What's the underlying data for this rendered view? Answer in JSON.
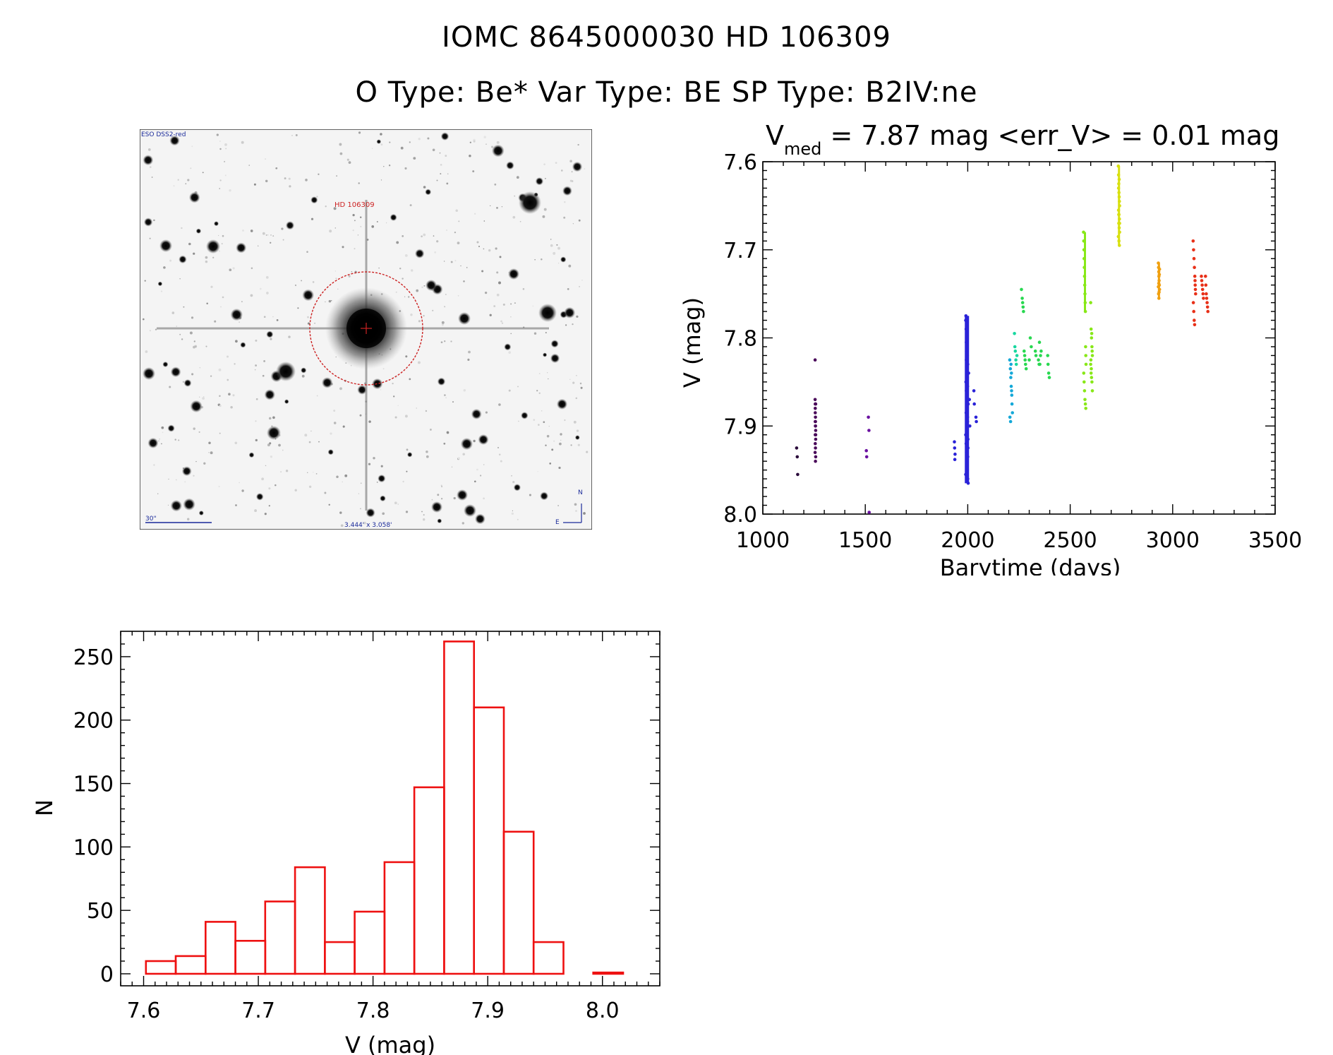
{
  "header": {
    "title": "IOMC 8645000030    HD 106309",
    "subtitle": "O Type: Be*   Var Type: BE   SP Type: B2IV:ne"
  },
  "finder": {
    "survey_label": "ESO DSS2-red",
    "target_label": "HD 106309",
    "scale_label": "30\"",
    "fov_label": "3.444' x 3.058'",
    "north_label": "N",
    "east_label": "E",
    "colors": {
      "circle": "#cc2222",
      "labels": "#1a2a9a",
      "target": "#cc2222"
    }
  },
  "chart_data": [
    {
      "type": "scatter",
      "title_main": "V",
      "title_sub": "med",
      "title_rest": " = 7.87 mag <err_V> = 0.01 mag",
      "xlabel": "Barytime (days)",
      "ylabel": "V (mag)",
      "xlim": [
        1000,
        3500
      ],
      "ylim": [
        7.6,
        8.0
      ],
      "y_inverted": true,
      "xticks": [
        1000,
        1500,
        2000,
        2500,
        3000,
        3500
      ],
      "yticks": [
        7.6,
        7.7,
        7.8,
        7.9,
        8.0
      ],
      "series": [
        {
          "color": "#2a0a3a",
          "x": [
            1165,
            1168,
            1170
          ],
          "y": [
            7.925,
            7.935,
            7.955
          ]
        },
        {
          "color": "#4a0a5a",
          "x": [
            1255,
            1255,
            1256,
            1256,
            1256,
            1257,
            1257,
            1257,
            1258,
            1258,
            1258,
            1256,
            1257,
            1255,
            1258,
            1257,
            1256,
            1258,
            1257,
            1256
          ],
          "y": [
            7.825,
            7.87,
            7.875,
            7.88,
            7.885,
            7.89,
            7.895,
            7.9,
            7.905,
            7.91,
            7.915,
            7.92,
            7.925,
            7.93,
            7.935,
            7.94,
            7.895,
            7.875,
            7.9,
            7.91
          ]
        },
        {
          "color": "#6a10a0",
          "x": [
            1505,
            1507,
            1515,
            1518,
            1519
          ],
          "y": [
            7.928,
            7.935,
            7.89,
            7.905,
            7.998
          ]
        },
        {
          "color": "#2a22d8",
          "x": [
            1935,
            1936,
            1938,
            1937,
            1990,
            1992,
            1994,
            1996,
            1998,
            2000,
            2002,
            1991,
            1993,
            1995,
            1997,
            1999,
            2001,
            1990,
            1992,
            1994,
            1996,
            1998,
            2000,
            2002,
            1991,
            1993,
            1995,
            1997,
            1999,
            2001,
            1990,
            1994,
            1998,
            2002,
            1996,
            2000,
            1992,
            1997,
            1993,
            1999,
            2001,
            1995,
            2004,
            2008,
            2010,
            2030,
            2032,
            2040,
            2042
          ],
          "y": [
            7.918,
            7.925,
            7.932,
            7.938,
            7.78,
            7.79,
            7.8,
            7.81,
            7.82,
            7.83,
            7.84,
            7.85,
            7.86,
            7.87,
            7.88,
            7.89,
            7.9,
            7.91,
            7.92,
            7.93,
            7.94,
            7.95,
            7.96,
            7.965,
            7.775,
            7.805,
            7.835,
            7.865,
            7.895,
            7.925,
            7.955,
            7.815,
            7.845,
            7.875,
            7.905,
            7.935,
            7.885,
            7.945,
            7.825,
            7.855,
            7.915,
            7.795,
            7.84,
            7.87,
            7.9,
            7.86,
            7.875,
            7.89,
            7.895
          ]
        },
        {
          "color": "#14a8d8",
          "x": [
            2205,
            2208,
            2210,
            2212,
            2214,
            2216,
            2218,
            2206,
            2209,
            2213,
            2211,
            2215
          ],
          "y": [
            7.825,
            7.835,
            7.845,
            7.855,
            7.86,
            7.875,
            7.885,
            7.89,
            7.895,
            7.84,
            7.83,
            7.865
          ]
        },
        {
          "color": "#18d8a0",
          "x": [
            2228,
            2230,
            2232,
            2235,
            2237,
            2240
          ],
          "y": [
            7.795,
            7.81,
            7.815,
            7.825,
            7.83,
            7.82
          ]
        },
        {
          "color": "#28d850",
          "x": [
            2262,
            2266,
            2268,
            2270,
            2272,
            2275,
            2278,
            2280,
            2282,
            2285,
            2300,
            2305,
            2310,
            2330,
            2333,
            2345,
            2348,
            2350,
            2352,
            2355,
            2358,
            2390,
            2392,
            2395,
            2398
          ],
          "y": [
            7.745,
            7.755,
            7.76,
            7.765,
            7.77,
            7.815,
            7.82,
            7.825,
            7.83,
            7.835,
            7.825,
            7.8,
            7.81,
            7.815,
            7.82,
            7.825,
            7.83,
            7.805,
            7.83,
            7.82,
            7.815,
            7.82,
            7.83,
            7.84,
            7.845
          ]
        },
        {
          "color": "#88e818",
          "x": [
            2565,
            2566,
            2567,
            2568,
            2569,
            2570,
            2571,
            2572,
            2573,
            2574,
            2575,
            2576,
            2577,
            2566,
            2568,
            2570,
            2572,
            2574,
            2576,
            2600,
            2602,
            2604,
            2606,
            2608,
            2600,
            2602,
            2604,
            2606,
            2608,
            2603,
            2605,
            2601,
            2607
          ],
          "y": [
            7.68,
            7.69,
            7.7,
            7.71,
            7.72,
            7.73,
            7.74,
            7.75,
            7.76,
            7.77,
            7.81,
            7.82,
            7.83,
            7.84,
            7.85,
            7.86,
            7.87,
            7.875,
            7.88,
            7.76,
            7.79,
            7.8,
            7.81,
            7.82,
            7.83,
            7.84,
            7.845,
            7.85,
            7.86,
            7.835,
            7.795,
            7.825,
            7.815
          ]
        },
        {
          "color": "#d8e010",
          "x": [
            2735,
            2736,
            2737,
            2738,
            2739,
            2740,
            2741,
            2736,
            2738,
            2740,
            2737,
            2739,
            2741,
            2735,
            2738,
            2740,
            2736,
            2739,
            2737,
            2741
          ],
          "y": [
            7.605,
            7.615,
            7.625,
            7.635,
            7.64,
            7.645,
            7.65,
            7.655,
            7.66,
            7.665,
            7.67,
            7.675,
            7.68,
            7.685,
            7.69,
            7.695,
            7.63,
            7.62,
            7.66,
            7.67
          ]
        },
        {
          "color": "#f0a010",
          "x": [
            2930,
            2931,
            2932,
            2933,
            2934,
            2935,
            2936,
            2931,
            2933,
            2935,
            2932,
            2934,
            2936,
            2930
          ],
          "y": [
            7.715,
            7.72,
            7.725,
            7.73,
            7.735,
            7.74,
            7.745,
            7.75,
            7.755,
            7.728,
            7.738,
            7.748,
            7.722,
            7.742
          ]
        },
        {
          "color": "#e83018",
          "x": [
            3100,
            3102,
            3104,
            3106,
            3108,
            3110,
            3112,
            3101,
            3103,
            3105,
            3107,
            3109,
            3111,
            3140,
            3142,
            3144,
            3146,
            3148,
            3150,
            3160,
            3162,
            3164,
            3166,
            3168,
            3170,
            3172
          ],
          "y": [
            7.69,
            7.7,
            7.71,
            7.72,
            7.73,
            7.74,
            7.75,
            7.76,
            7.77,
            7.78,
            7.785,
            7.735,
            7.745,
            7.73,
            7.735,
            7.74,
            7.745,
            7.75,
            7.755,
            7.73,
            7.74,
            7.75,
            7.755,
            7.76,
            7.765,
            7.77
          ]
        }
      ]
    },
    {
      "type": "bar",
      "subtype": "histogram",
      "xlabel": "V (mag)",
      "ylabel": "N",
      "xlim": [
        7.58,
        8.05
      ],
      "ylim": [
        0,
        270
      ],
      "xticks": [
        7.6,
        7.7,
        7.8,
        7.9,
        8.0
      ],
      "yticks": [
        0,
        50,
        100,
        150,
        200,
        250
      ],
      "bin_width": 0.026,
      "bins": [
        7.602,
        7.628,
        7.654,
        7.68,
        7.706,
        7.732,
        7.758,
        7.784,
        7.81,
        7.836,
        7.862,
        7.888,
        7.914,
        7.94,
        7.966,
        7.992
      ],
      "values": [
        10,
        14,
        41,
        26,
        57,
        84,
        25,
        49,
        88,
        147,
        262,
        210,
        112,
        25,
        0,
        1
      ],
      "color": "#ee1111"
    }
  ]
}
